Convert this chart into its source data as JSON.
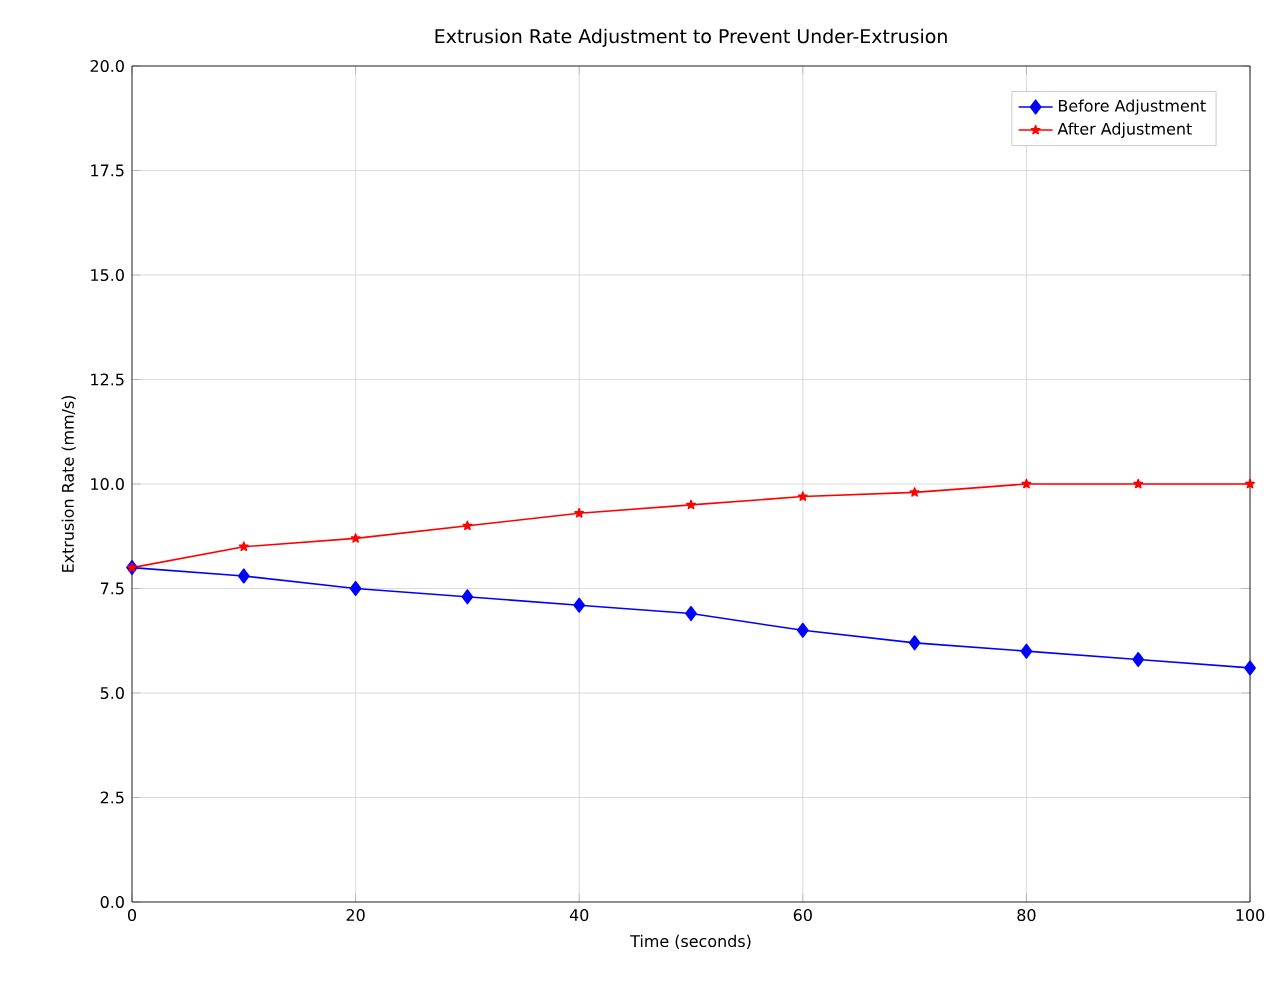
{
  "chart_data": {
    "type": "line",
    "title": "Extrusion Rate Adjustment to Prevent Under-Extrusion",
    "xlabel": "Time (seconds)",
    "ylabel": "Extrusion Rate (mm/s)",
    "x": [
      0,
      10,
      20,
      30,
      40,
      50,
      60,
      70,
      80,
      90,
      100
    ],
    "series": [
      {
        "name": "Before Adjustment",
        "color": "#0000ff",
        "marker": "diamond",
        "values": [
          8.0,
          7.8,
          7.5,
          7.3,
          7.1,
          6.9,
          6.5,
          6.2,
          6.0,
          5.8,
          5.6
        ]
      },
      {
        "name": "After Adjustment",
        "color": "#ff0000",
        "marker": "star",
        "values": [
          8.0,
          8.5,
          8.7,
          9.0,
          9.3,
          9.5,
          9.7,
          9.8,
          10.0,
          10.0,
          10.0
        ]
      }
    ],
    "xlim": [
      0,
      100
    ],
    "xticks": [
      0,
      20,
      40,
      60,
      80,
      100
    ],
    "ylim": [
      0,
      20
    ],
    "yticks": [
      {
        "value": 0,
        "label": "0.0"
      },
      {
        "value": 2.5,
        "label": "2.5"
      },
      {
        "value": 5,
        "label": "5.0"
      },
      {
        "value": 7.5,
        "label": "7.5"
      },
      {
        "value": 10,
        "label": "10.0"
      },
      {
        "value": 12.5,
        "label": "12.5"
      },
      {
        "value": 15,
        "label": "15.0"
      },
      {
        "value": 17.5,
        "label": "17.5"
      },
      {
        "value": 20,
        "label": "20.0"
      }
    ],
    "grid": true,
    "legend": "top right",
    "line_style": "solid"
  }
}
